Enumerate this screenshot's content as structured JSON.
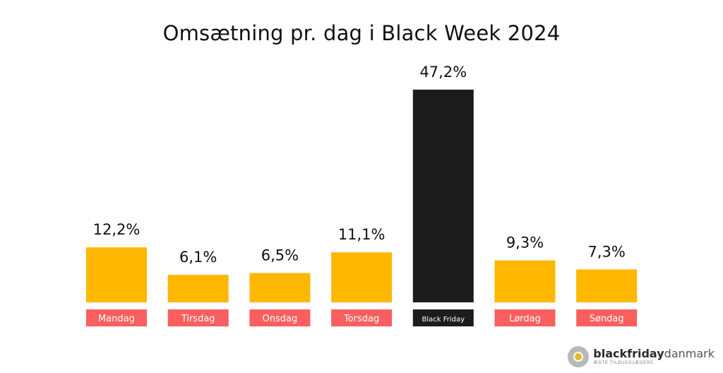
{
  "chart_data": {
    "type": "bar",
    "title": "Omsætning pr. dag i Black Week 2024",
    "categories": [
      "Mandag",
      "Tirsdag",
      "Onsdag",
      "Torsdag",
      "Black Friday",
      "Lørdag",
      "Søndag"
    ],
    "values": [
      12.2,
      6.1,
      6.5,
      11.1,
      47.2,
      9.3,
      7.3
    ],
    "value_labels": [
      "12,2%",
      "6,1%",
      "6,5%",
      "11,1%",
      "47,2%",
      "9,3%",
      "7,3%"
    ],
    "highlight_category": "Black Friday",
    "ylim": [
      0,
      50
    ],
    "grid": false,
    "colors": {
      "bar": "#ffb700",
      "highlight_bar": "#1c1c1c",
      "label_box": "#f95f5f",
      "highlight_label_box": "#1c1c1c"
    }
  },
  "logo": {
    "icon": "black-friday-tag-icon",
    "name_bold": "blackfriday",
    "name_regular": "danmark",
    "tagline": "ÆGTE TILBUDSJÆGERE"
  }
}
